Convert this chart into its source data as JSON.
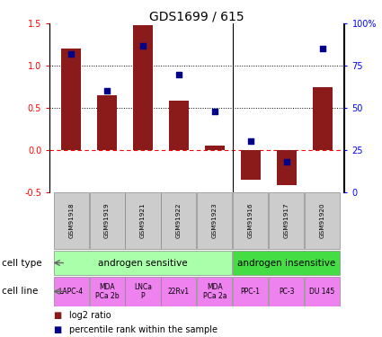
{
  "title": "GDS1699 / 615",
  "samples": [
    "GSM91918",
    "GSM91919",
    "GSM91921",
    "GSM91922",
    "GSM91923",
    "GSM91916",
    "GSM91917",
    "GSM91920"
  ],
  "log2_ratio": [
    1.2,
    0.65,
    1.48,
    0.58,
    0.05,
    -0.35,
    -0.42,
    0.75
  ],
  "percentile_rank": [
    82,
    60,
    87,
    70,
    48,
    30,
    18,
    85
  ],
  "cell_type_groups": [
    {
      "label": "androgen sensitive",
      "start": 0,
      "end": 5,
      "color": "#aaffaa"
    },
    {
      "label": "androgen insensitive",
      "start": 5,
      "end": 8,
      "color": "#44dd44"
    }
  ],
  "cell_lines": [
    "LAPC-4",
    "MDA\nPCa 2b",
    "LNCa\nP",
    "22Rv1",
    "MDA\nPCa 2a",
    "PPC-1",
    "PC-3",
    "DU 145"
  ],
  "cell_line_color": "#ee82ee",
  "bar_color": "#8b1a1a",
  "dot_color": "#00008b",
  "ylim_left": [
    -0.5,
    1.5
  ],
  "ylim_right": [
    0,
    100
  ],
  "yticks_left": [
    -0.5,
    0.0,
    0.5,
    1.0,
    1.5
  ],
  "yticks_right": [
    0,
    25,
    50,
    75,
    100
  ],
  "sample_box_color": "#cccccc",
  "title_fontsize": 10,
  "n_samples": 8,
  "n_sensitive": 5
}
